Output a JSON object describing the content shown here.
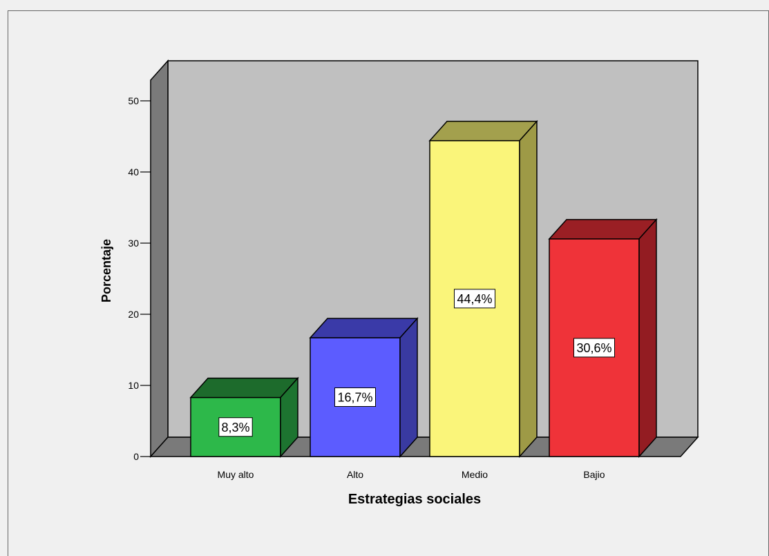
{
  "chart_data": {
    "type": "bar",
    "xlabel": "Estrategias sociales",
    "ylabel": "Porcentaje",
    "categories": [
      "Muy alto",
      "Alto",
      "Medio",
      "Bajio"
    ],
    "values": [
      8.3,
      16.7,
      44.4,
      30.6
    ],
    "data_labels": [
      "8,3%",
      "16,7%",
      "44,4%",
      "30,6%"
    ],
    "yticks": [
      0,
      10,
      20,
      30,
      40,
      50
    ],
    "ylim": [
      0,
      52
    ],
    "three_d": true,
    "grid": false,
    "legend": "none",
    "colors": {
      "bars": [
        "#2db84a",
        "#5c5cff",
        "#faf57a",
        "#ef3339"
      ],
      "bars_top": [
        "#1d6b2c",
        "#3a3aa8",
        "#a3a04d",
        "#9a1f24"
      ],
      "bars_side": [
        "#1d7430",
        "#393aa1",
        "#9e9a46",
        "#931c22"
      ],
      "plot_back_wall": "#c0c0c0",
      "plot_side_wall": "#7a7a7a",
      "plot_floor": "#7a7a7a",
      "background": "#f0f0f0"
    }
  }
}
